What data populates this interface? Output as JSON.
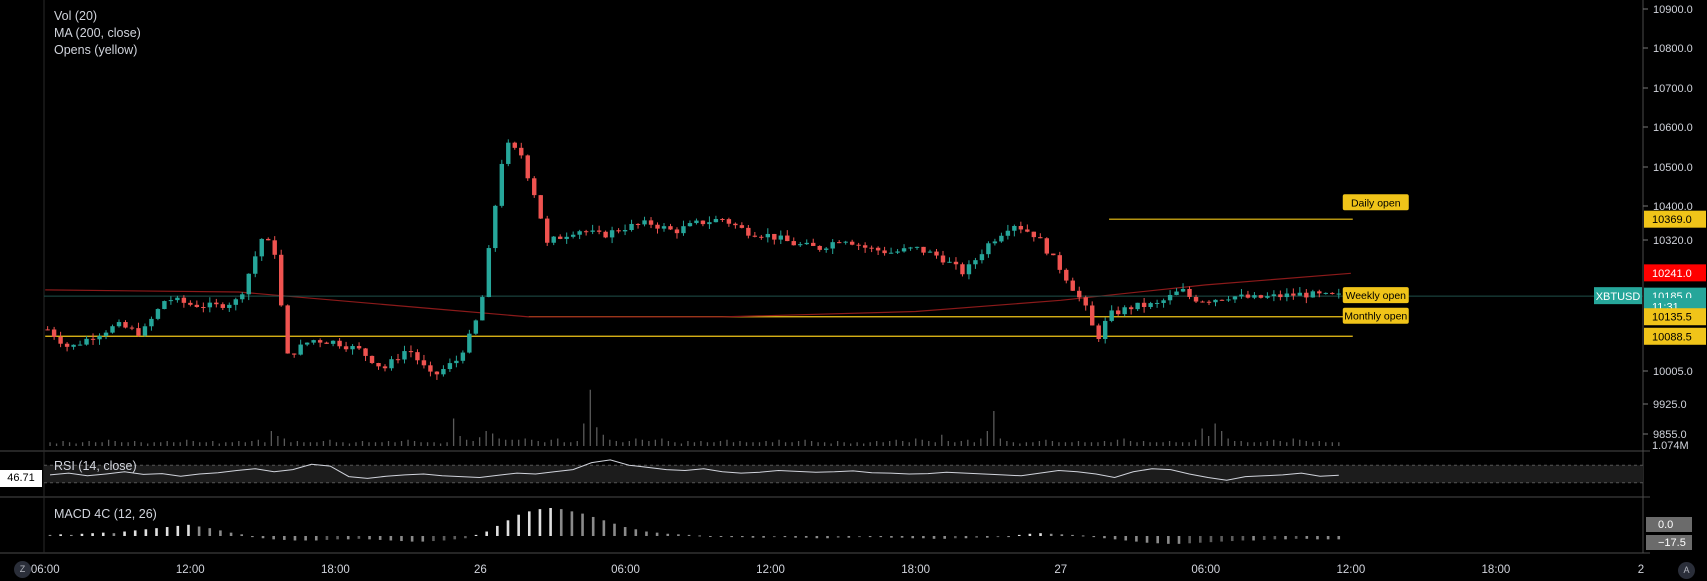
{
  "legend": {
    "vol": "Vol (20)",
    "ma": "MA (200, close)",
    "opens": "Opens (yellow)",
    "rsi": "RSI (14, close)",
    "macd": "MACD 4C (12, 26)"
  },
  "rsi_value": "46.71",
  "buttons": {
    "z": "Z",
    "a": "A"
  },
  "colors": {
    "background": "#000000",
    "up": "#26a69a",
    "down": "#ef5350",
    "ma": "#8b1a1a",
    "opens": "#f0c419",
    "rsi_line": "#d1d4dc",
    "price_badge": "#26a69a",
    "high_badge": "#ff0000"
  },
  "chart_data": {
    "type": "candlestick",
    "symbol": "XBTUSD",
    "price_axis": {
      "ticks": [
        "10900.0",
        "10800.0",
        "10700.0",
        "10600.0",
        "10500.0",
        "10400.0",
        "10320.0",
        "10005.0",
        "9925.0",
        "9855.0"
      ],
      "tick_values": [
        10900,
        10800,
        10700,
        10600,
        10500,
        10400,
        10320,
        10005,
        9925,
        9855
      ]
    },
    "time_axis": {
      "ticks": [
        "06:00",
        "12:00",
        "18:00",
        "26",
        "06:00",
        "12:00",
        "18:00",
        "27",
        "06:00",
        "12:00",
        "18:00",
        "2"
      ],
      "tick_hours": [
        6,
        12,
        18,
        24,
        30,
        36,
        42,
        48,
        54,
        60,
        66,
        72
      ]
    },
    "x_range_hours": [
      5.95,
      72
    ],
    "last_bar_hour": 59.5,
    "badges": [
      {
        "label": "10369.0",
        "value": 10369,
        "kind": "opens"
      },
      {
        "label": "10241.0",
        "value": 10241,
        "kind": "high"
      },
      {
        "label": "10185.0",
        "value": 10185,
        "kind": "price"
      },
      {
        "label": "11:31",
        "value": 10160,
        "kind": "countdown"
      },
      {
        "label": "10135.5",
        "value": 10135.5,
        "kind": "opens"
      },
      {
        "label": "10088.5",
        "value": 10088.5,
        "kind": "opens"
      }
    ],
    "symbol_badge_value": 10185,
    "open_levels": [
      {
        "label": "Daily open",
        "value": 10369,
        "from_hour": 50
      },
      {
        "label": "Weekly open",
        "value": 10135.5,
        "from_hour": 26
      },
      {
        "label": "Monthly open",
        "value": 10088.5,
        "from_hour": 6
      }
    ],
    "ma200": {
      "x": [
        6,
        14,
        22,
        26,
        34,
        42,
        48,
        54,
        60
      ],
      "y": [
        10200,
        10195,
        10155,
        10135,
        10135,
        10148,
        10175,
        10212,
        10240
      ]
    },
    "price_path": {
      "x": [
        6,
        7,
        8,
        9,
        10,
        11,
        12,
        13,
        14,
        15,
        15.5,
        16,
        17,
        18,
        19,
        20,
        21,
        22,
        23,
        23.5,
        24,
        25,
        25.7,
        26,
        26.3,
        26.8,
        27,
        28,
        29,
        30,
        31,
        32,
        33,
        34,
        35,
        36,
        37,
        38,
        39,
        40,
        41,
        42,
        43,
        44,
        45,
        46,
        47,
        48,
        49,
        49.5,
        50,
        51,
        52,
        53,
        53.4,
        54,
        55,
        56,
        57,
        58,
        59,
        59.5
      ],
      "y": [
        10110,
        10060,
        10090,
        10115,
        10095,
        10180,
        10165,
        10160,
        10175,
        10330,
        10290,
        10040,
        10080,
        10075,
        10055,
        10010,
        10060,
        9990,
        10030,
        10080,
        10150,
        10560,
        10530,
        10470,
        10420,
        10300,
        10320,
        10345,
        10330,
        10350,
        10360,
        10340,
        10360,
        10370,
        10340,
        10330,
        10310,
        10300,
        10325,
        10300,
        10290,
        10300,
        10280,
        10240,
        10310,
        10360,
        10330,
        10250,
        10160,
        10080,
        10140,
        10160,
        10165,
        10200,
        10180,
        10175,
        10185,
        10180,
        10185,
        10190,
        10185,
        10185
      ]
    },
    "volume_axis_label": "1.074M",
    "volume": [
      3,
      2,
      4,
      3,
      2,
      3,
      4,
      3,
      3,
      5,
      4,
      3,
      3,
      4,
      3,
      2,
      3,
      3,
      4,
      3,
      3,
      5,
      4,
      3,
      3,
      4,
      2,
      3,
      3,
      4,
      3,
      4,
      5,
      3,
      12,
      8,
      6,
      3,
      4,
      3,
      3,
      3,
      4,
      5,
      3,
      3,
      2,
      3,
      4,
      3,
      3,
      3,
      4,
      3,
      4,
      5,
      4,
      3,
      3,
      3,
      2,
      3,
      22,
      8,
      5,
      4,
      7,
      12,
      10,
      6,
      5,
      5,
      5,
      6,
      5,
      4,
      3,
      5,
      6,
      3,
      3,
      4,
      18,
      45,
      15,
      9,
      5,
      4,
      3,
      4,
      6,
      5,
      4,
      5,
      6,
      4,
      3,
      2,
      4,
      3,
      4,
      3,
      3,
      4,
      5,
      3,
      4,
      3,
      3,
      3,
      4,
      3,
      5,
      3,
      3,
      4,
      5,
      4,
      3,
      3,
      2,
      4,
      3,
      2,
      3,
      2,
      3,
      4,
      3,
      4,
      5,
      4,
      3,
      6,
      5,
      4,
      3,
      9,
      4,
      3,
      4,
      5,
      3,
      6,
      12,
      28,
      6,
      4,
      3,
      2,
      3,
      3,
      4,
      5,
      4,
      3,
      3,
      3,
      4,
      3,
      3,
      3,
      4,
      3,
      5,
      6,
      4,
      3,
      4,
      3,
      3,
      3,
      4,
      3,
      3,
      3,
      5,
      14,
      8,
      18,
      12,
      6,
      4,
      4,
      3,
      3,
      3,
      4,
      5,
      4,
      3,
      6,
      5,
      4,
      3,
      4,
      3,
      3,
      3
    ],
    "rsi": {
      "label": "RSI (14, close)",
      "levels": [
        70,
        30
      ],
      "values": [
        48,
        52,
        46,
        50,
        55,
        49,
        51,
        45,
        50,
        53,
        58,
        62,
        55,
        60,
        72,
        68,
        44,
        40,
        45,
        48,
        50,
        46,
        44,
        42,
        47,
        52,
        50,
        55,
        60,
        76,
        82,
        70,
        65,
        60,
        58,
        62,
        55,
        52,
        54,
        58,
        56,
        54,
        55,
        57,
        53,
        52,
        50,
        51,
        54,
        52,
        50,
        48,
        46,
        52,
        58,
        55,
        50,
        42,
        55,
        62,
        60,
        50,
        42,
        36,
        44,
        46,
        48,
        52,
        45,
        47
      ]
    },
    "macd": {
      "label": "MACD 4C (12, 26)",
      "ticks": [
        "0.0",
        "−17.5"
      ],
      "tick_values": [
        0,
        -17.5
      ],
      "hist": [
        2,
        3,
        2,
        4,
        5,
        6,
        5,
        8,
        10,
        12,
        14,
        16,
        18,
        20,
        17,
        14,
        10,
        6,
        3,
        -2,
        -4,
        -6,
        -7,
        -8,
        -8,
        -8,
        -7,
        -6,
        -6,
        -5,
        -6,
        -7,
        -8,
        -9,
        -10,
        -10,
        -9,
        -8,
        -6,
        -4,
        2,
        8,
        18,
        28,
        38,
        44,
        48,
        50,
        48,
        44,
        40,
        34,
        28,
        22,
        16,
        12,
        8,
        6,
        4,
        3,
        2,
        1,
        0,
        -1,
        -2,
        -2,
        -3,
        -3,
        -2,
        -2,
        -3,
        -3,
        -4,
        -4,
        -3,
        -3,
        -2,
        -2,
        -2,
        -3,
        -3,
        -4,
        -4,
        -5,
        -5,
        -4,
        -4,
        -3,
        -3,
        -2,
        -2,
        2,
        4,
        5,
        4,
        3,
        2,
        1,
        -2,
        -4,
        -6,
        -8,
        -10,
        -12,
        -13,
        -14,
        -14,
        -13,
        -12,
        -11,
        -10,
        -9,
        -8,
        -8,
        -7,
        -6,
        -6,
        -5,
        -5,
        -6,
        -6,
        -6
      ]
    }
  }
}
